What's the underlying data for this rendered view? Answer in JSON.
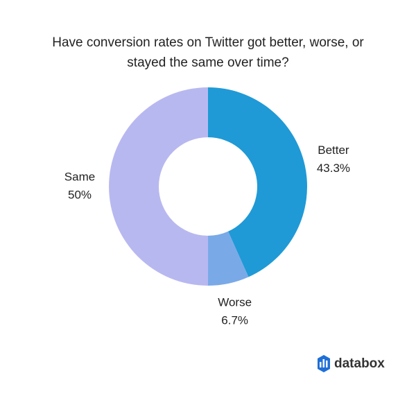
{
  "chart_data": {
    "type": "donut",
    "title": [
      "Have conversion rates on Twitter got better, worse, or",
      "stayed the same over time?"
    ],
    "categories": [
      "Better",
      "Worse",
      "Same"
    ],
    "values": [
      43.3,
      6.7,
      50
    ],
    "value_labels": [
      "43.3%",
      "6.7%",
      "50%"
    ],
    "colors": [
      "#1f9ad6",
      "#7aa9e8",
      "#b8b8f0"
    ]
  },
  "brand": "databox"
}
